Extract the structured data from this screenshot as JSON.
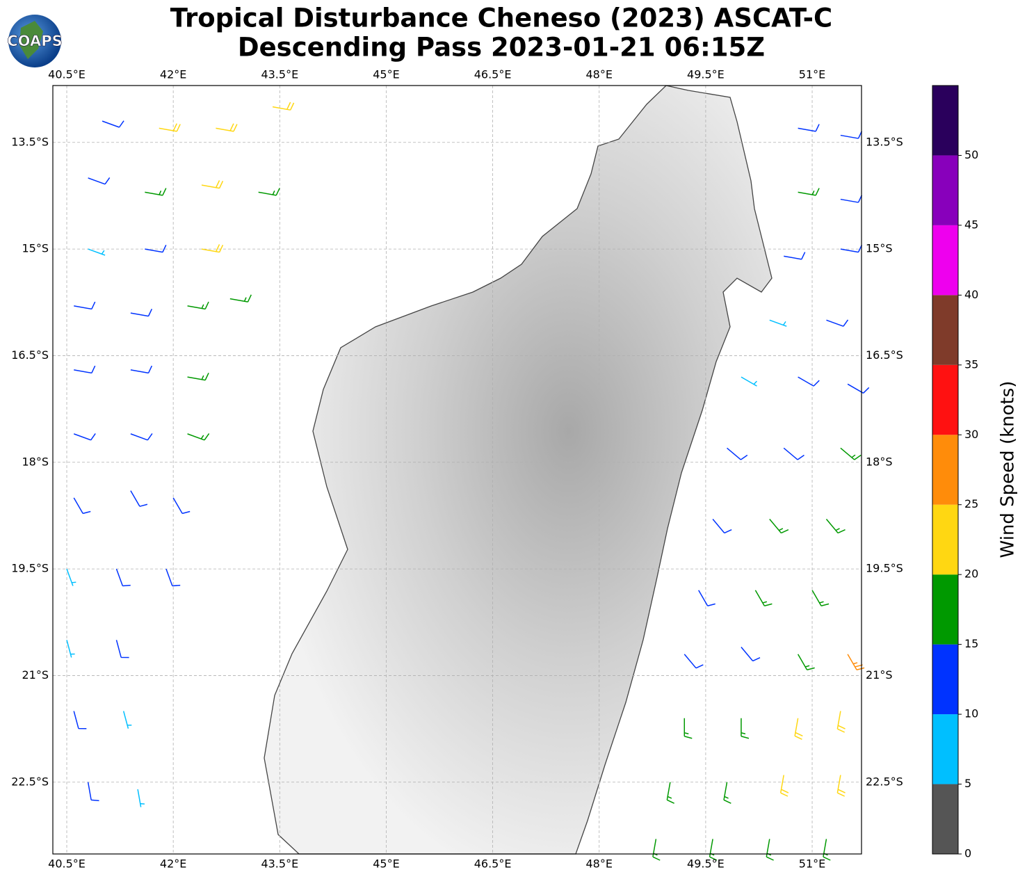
{
  "chart_data": {
    "type": "wind-barbs",
    "title": [
      "Tropical Disturbance Cheneso (2023) ASCAT-C",
      "Descending Pass 2023-01-21 06:15Z"
    ],
    "logo": "COAPS",
    "xlim": [
      40.304,
      51.695
    ],
    "ylim": [
      -23.51,
      -12.7
    ],
    "xticks": [
      {
        "value": 40.5,
        "label": "40.5°E"
      },
      {
        "value": 42,
        "label": "42°E"
      },
      {
        "value": 43.5,
        "label": "43.5°E"
      },
      {
        "value": 45,
        "label": "45°E"
      },
      {
        "value": 46.5,
        "label": "46.5°E"
      },
      {
        "value": 48,
        "label": "48°E"
      },
      {
        "value": 49.5,
        "label": "49.5°E"
      },
      {
        "value": 51,
        "label": "51°E"
      }
    ],
    "yticks": [
      {
        "value": -13.5,
        "label": "13.5°S"
      },
      {
        "value": -15,
        "label": "15°S"
      },
      {
        "value": -16.5,
        "label": "16.5°S"
      },
      {
        "value": -18,
        "label": "18°S"
      },
      {
        "value": -19.5,
        "label": "19.5°S"
      },
      {
        "value": -21,
        "label": "21°S"
      },
      {
        "value": -22.5,
        "label": "22.5°S"
      }
    ],
    "grid": true,
    "barbs": {
      "lon": [
        41.0,
        41.8,
        42.6,
        43.4,
        40.8,
        41.6,
        42.4,
        43.2,
        40.8,
        41.6,
        42.4,
        40.6,
        41.4,
        42.2,
        42.8,
        40.6,
        41.4,
        42.2,
        40.6,
        41.4,
        42.2,
        40.6,
        41.4,
        42.0,
        40.5,
        41.2,
        41.9,
        40.5,
        41.2,
        40.6,
        41.3,
        40.8,
        41.5,
        50.8,
        51.4,
        50.8,
        51.4,
        50.6,
        51.4,
        50.4,
        51.2,
        50.0,
        50.8,
        51.5,
        49.8,
        50.6,
        51.4,
        49.6,
        50.4,
        51.2,
        49.4,
        50.2,
        51.0,
        49.2,
        50.0,
        50.8,
        51.5,
        49.2,
        50.0,
        50.8,
        51.4,
        49.0,
        49.8,
        50.6,
        51.4,
        48.8,
        49.6,
        50.4,
        51.2
      ],
      "lat": [
        -13.2,
        -13.3,
        -13.3,
        -13.0,
        -14.0,
        -14.2,
        -14.1,
        -14.2,
        -15.0,
        -15.0,
        -15.0,
        -15.8,
        -15.9,
        -15.8,
        -15.7,
        -16.7,
        -16.7,
        -16.8,
        -17.6,
        -17.6,
        -17.6,
        -18.5,
        -18.4,
        -18.5,
        -19.5,
        -19.5,
        -19.5,
        -20.5,
        -20.5,
        -21.5,
        -21.5,
        -22.5,
        -22.6,
        -13.3,
        -13.4,
        -14.2,
        -14.3,
        -15.1,
        -15.0,
        -16.0,
        -16.0,
        -16.8,
        -16.8,
        -16.9,
        -17.8,
        -17.8,
        -17.8,
        -18.8,
        -18.8,
        -18.8,
        -19.8,
        -19.8,
        -19.8,
        -20.7,
        -20.6,
        -20.7,
        -20.7,
        -21.6,
        -21.6,
        -21.6,
        -21.5,
        -22.5,
        -22.5,
        -22.4,
        -22.4,
        -23.3,
        -23.3,
        -23.3,
        -23.3
      ],
      "speed": [
        12,
        22,
        22,
        22,
        10,
        17,
        22,
        18,
        8,
        13,
        22,
        12,
        13,
        17,
        18,
        12,
        12,
        16,
        12,
        12,
        16,
        12,
        12,
        12,
        8,
        12,
        12,
        8,
        12,
        12,
        8,
        12,
        8,
        12,
        12,
        17,
        12,
        12,
        12,
        8,
        12,
        8,
        12,
        12,
        12,
        12,
        17,
        12,
        17,
        17,
        12,
        17,
        17,
        12,
        12,
        17,
        27,
        16,
        17,
        22,
        22,
        17,
        17,
        22,
        22,
        17,
        17,
        17,
        17
      ],
      "direction": [
        110,
        100,
        100,
        100,
        110,
        100,
        100,
        100,
        110,
        100,
        100,
        100,
        100,
        100,
        100,
        100,
        100,
        100,
        110,
        110,
        110,
        150,
        150,
        150,
        160,
        160,
        160,
        165,
        165,
        165,
        165,
        170,
        170,
        100,
        100,
        100,
        100,
        100,
        100,
        110,
        110,
        120,
        120,
        120,
        130,
        130,
        130,
        140,
        140,
        140,
        150,
        150,
        150,
        140,
        140,
        150,
        150,
        180,
        180,
        190,
        190,
        190,
        190,
        190,
        190,
        190,
        190,
        190,
        190
      ]
    },
    "colorbar": {
      "label": "Wind Speed (knots)",
      "lim": [
        0,
        55
      ],
      "ticks": [
        0,
        5,
        10,
        15,
        20,
        25,
        30,
        35,
        40,
        45,
        50
      ],
      "colors": [
        "#555555",
        "#00bfff",
        "#0033ff",
        "#009900",
        "#ffd712",
        "#ff8c0a",
        "#ff1111",
        "#7f3b2a",
        "#ee00ee",
        "#8800bb",
        "#2a005c"
      ]
    }
  }
}
